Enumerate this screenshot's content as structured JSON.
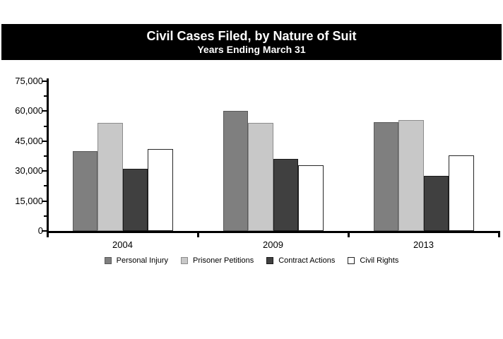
{
  "header": {
    "title": "Civil Cases Filed, by Nature of Suit",
    "subtitle": "Years Ending March 31",
    "background": "#000000",
    "text_color": "#ffffff"
  },
  "chart_data": {
    "type": "bar",
    "title": "Civil Cases Filed, by Nature of Suit",
    "subtitle": "Years Ending March 31",
    "categories": [
      "2004",
      "2009",
      "2013"
    ],
    "series": [
      {
        "name": "Personal Injury",
        "fill": "#7f7f7f",
        "border": "#595959",
        "values": [
          40000,
          60000,
          54500
        ]
      },
      {
        "name": "Prisoner Petitions",
        "fill": "#c8c8c8",
        "border": "#8c8c8c",
        "values": [
          54000,
          54000,
          55500
        ]
      },
      {
        "name": "Contract Actions",
        "fill": "#404040",
        "border": "#1a1a1a",
        "values": [
          31000,
          36000,
          27500
        ]
      },
      {
        "name": "Civil Rights",
        "fill": "#ffffff",
        "border": "#262626",
        "values": [
          41000,
          33000,
          38000
        ]
      }
    ],
    "xlabel": "",
    "ylabel": "",
    "ylim": [
      0,
      75000
    ],
    "ytick_step": 15000,
    "ytick_labels": [
      "0",
      "15,000",
      "30,000",
      "45,000",
      "60,000",
      "75,000"
    ],
    "minor_tick_step": 7500,
    "grid": false,
    "legend_position": "bottom",
    "axis_color": "#000000"
  }
}
